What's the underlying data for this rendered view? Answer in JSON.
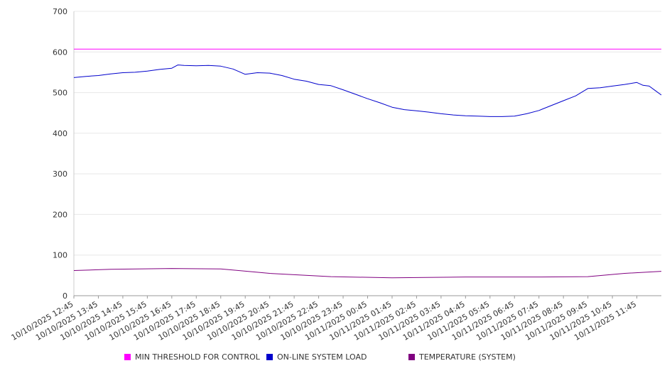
{
  "chart_data": {
    "type": "line",
    "title": "",
    "xlabel": "",
    "ylabel": "",
    "ylim": [
      0,
      700
    ],
    "yticks": [
      0,
      100,
      200,
      300,
      400,
      500,
      600,
      700
    ],
    "grid": true,
    "legend_position": "bottom",
    "x_tick_labels": [
      "10/10/2025 12:45",
      "10/10/2025 13:45",
      "10/10/2025 14:45",
      "10/10/2025 15:45",
      "10/10/2025 16:45",
      "10/10/2025 17:45",
      "10/10/2025 18:45",
      "10/10/2025 19:45",
      "10/10/2025 20:45",
      "10/10/2025 21:45",
      "10/10/2025 22:45",
      "10/10/2025 23:45",
      "10/11/2025 00:45",
      "10/11/2025 01:45",
      "10/11/2025 02:45",
      "10/11/2025 03:45",
      "10/11/2025 04:45",
      "10/11/2025 05:45",
      "10/11/2025 06:45",
      "10/11/2025 07:45",
      "10/11/2025 08:45",
      "10/11/2025 09:45",
      "10/11/2025 10:45",
      "10/11/2025 11:45"
    ],
    "x_end": "10/11/2025 12:45",
    "series": [
      {
        "name": "MIN THRESHOLD FOR CONTROL",
        "color": "#ff00ff",
        "points": [
          [
            "10/10/2025 12:45",
            607
          ],
          [
            "10/11/2025 12:45",
            607
          ]
        ]
      },
      {
        "name": "ON-LINE SYSTEM LOAD",
        "color": "#0000cc",
        "points": [
          [
            "10/10/2025 12:45",
            537
          ],
          [
            "10/10/2025 13:15",
            540
          ],
          [
            "10/10/2025 13:45",
            542
          ],
          [
            "10/10/2025 14:15",
            546
          ],
          [
            "10/10/2025 14:45",
            549
          ],
          [
            "10/10/2025 15:15",
            550
          ],
          [
            "10/10/2025 15:45",
            553
          ],
          [
            "10/10/2025 16:15",
            557
          ],
          [
            "10/10/2025 16:45",
            560
          ],
          [
            "10/10/2025 17:00",
            568
          ],
          [
            "10/10/2025 17:15",
            567
          ],
          [
            "10/10/2025 17:45",
            566
          ],
          [
            "10/10/2025 18:15",
            567
          ],
          [
            "10/10/2025 18:45",
            565
          ],
          [
            "10/10/2025 19:15",
            558
          ],
          [
            "10/10/2025 19:45",
            545
          ],
          [
            "10/10/2025 20:15",
            549
          ],
          [
            "10/10/2025 20:45",
            548
          ],
          [
            "10/10/2025 21:15",
            542
          ],
          [
            "10/10/2025 21:45",
            533
          ],
          [
            "10/10/2025 22:15",
            528
          ],
          [
            "10/10/2025 22:45",
            520
          ],
          [
            "10/10/2025 23:15",
            517
          ],
          [
            "10/10/2025 23:45",
            507
          ],
          [
            "10/11/2025 00:15",
            496
          ],
          [
            "10/11/2025 00:45",
            485
          ],
          [
            "10/11/2025 01:15",
            475
          ],
          [
            "10/11/2025 01:45",
            464
          ],
          [
            "10/11/2025 02:15",
            458
          ],
          [
            "10/11/2025 02:45",
            455
          ],
          [
            "10/11/2025 03:15",
            452
          ],
          [
            "10/11/2025 03:45",
            448
          ],
          [
            "10/11/2025 04:15",
            445
          ],
          [
            "10/11/2025 04:45",
            443
          ],
          [
            "10/11/2025 05:15",
            442
          ],
          [
            "10/11/2025 05:45",
            441
          ],
          [
            "10/11/2025 06:15",
            441
          ],
          [
            "10/11/2025 06:45",
            442
          ],
          [
            "10/11/2025 07:15",
            448
          ],
          [
            "10/11/2025 07:45",
            456
          ],
          [
            "10/11/2025 08:15",
            468
          ],
          [
            "10/11/2025 08:45",
            480
          ],
          [
            "10/11/2025 09:15",
            492
          ],
          [
            "10/11/2025 09:45",
            510
          ],
          [
            "10/11/2025 10:15",
            512
          ],
          [
            "10/11/2025 10:45",
            516
          ],
          [
            "10/11/2025 11:15",
            520
          ],
          [
            "10/11/2025 11:45",
            525
          ],
          [
            "10/11/2025 12:00",
            518
          ],
          [
            "10/11/2025 12:15",
            516
          ],
          [
            "10/11/2025 12:30",
            505
          ],
          [
            "10/11/2025 12:45",
            494
          ]
        ]
      },
      {
        "name": "TEMPERATURE (SYSTEM)",
        "color": "#800080",
        "points": [
          [
            "10/10/2025 12:45",
            62
          ],
          [
            "10/10/2025 14:15",
            65
          ],
          [
            "10/10/2025 16:45",
            67
          ],
          [
            "10/10/2025 18:45",
            66
          ],
          [
            "10/10/2025 20:45",
            55
          ],
          [
            "10/10/2025 23:15",
            47
          ],
          [
            "10/11/2025 01:45",
            44
          ],
          [
            "10/11/2025 04:45",
            46
          ],
          [
            "10/11/2025 07:45",
            46
          ],
          [
            "10/11/2025 09:45",
            47
          ],
          [
            "10/11/2025 11:15",
            55
          ],
          [
            "10/11/2025 12:45",
            60
          ]
        ]
      }
    ]
  }
}
